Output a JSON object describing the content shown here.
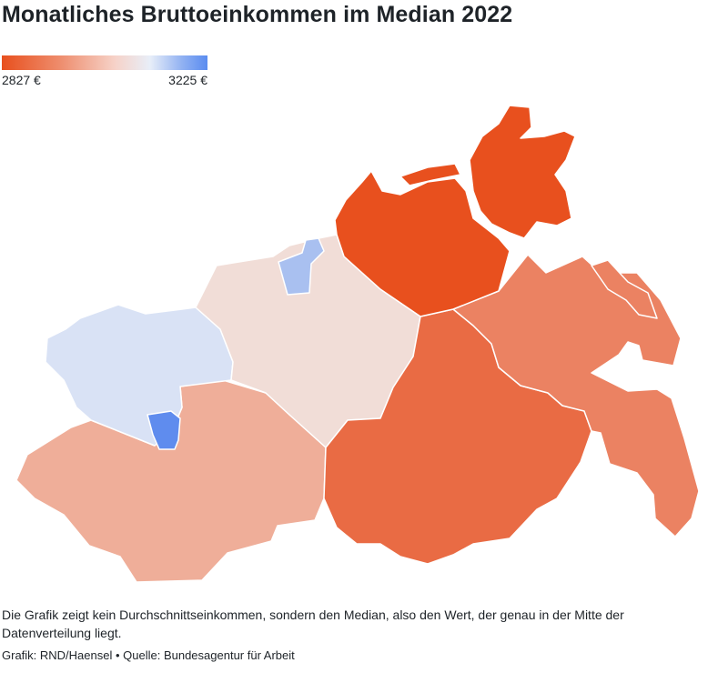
{
  "title": "Monatliches Bruttoeinkommen im Median 2022",
  "legend": {
    "min_label": "2827 €",
    "max_label": "3225 €",
    "min_value": 2827,
    "max_value": 3225,
    "color_min": "#e8501e",
    "color_mid": "#e8eef8",
    "color_max": "#5a8cf0"
  },
  "note": "Die Grafik zeigt kein Durchschnittseinkommen, sondern den Median, also den Wert, der genau in der Mitte der Datenverteilung liegt.",
  "source": "Grafik: RND/Haensel • Quelle: Bundesagentur für Arbeit"
}
